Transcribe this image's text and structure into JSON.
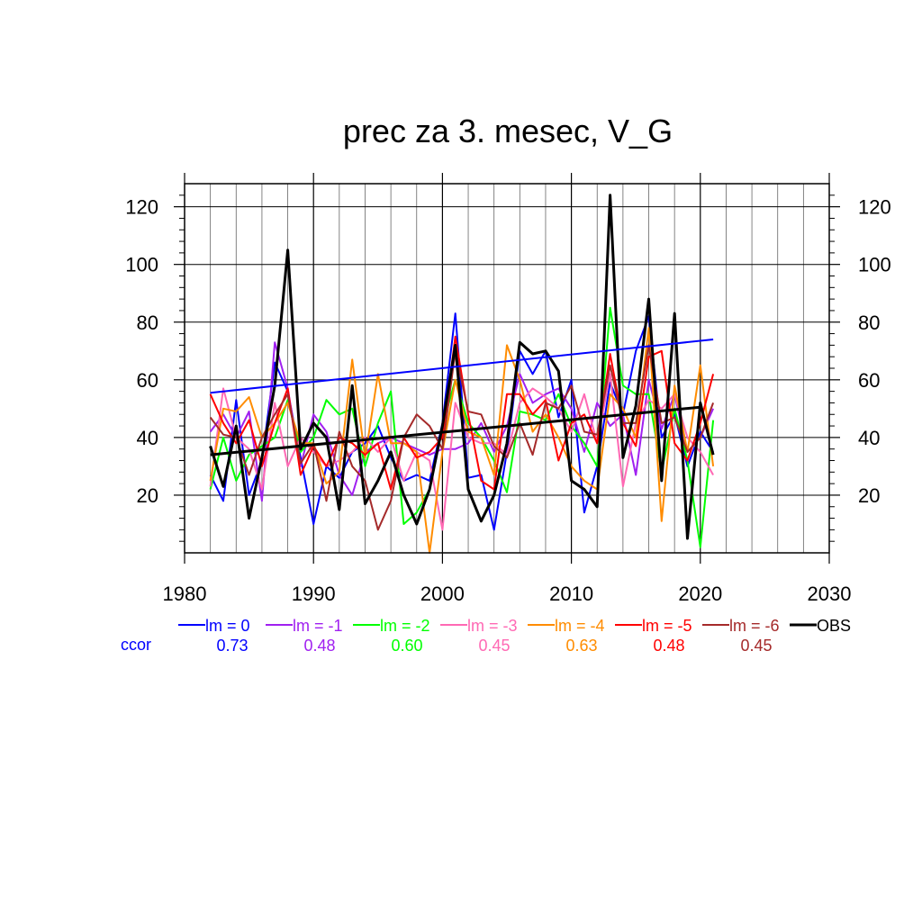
{
  "chart_data": {
    "type": "line",
    "title": "prec za 3. mesec, V_G",
    "xlim": [
      1980,
      2030
    ],
    "ylim": [
      0,
      128
    ],
    "x_ticks": [
      1980,
      1990,
      2000,
      2010,
      2020,
      2030
    ],
    "y_ticks": [
      20,
      40,
      60,
      80,
      100,
      120
    ],
    "grid": true,
    "legend_placement": "bottom",
    "years": [
      1982,
      1983,
      1984,
      1985,
      1986,
      1987,
      1988,
      1989,
      1990,
      1991,
      1992,
      1993,
      1994,
      1995,
      1996,
      1997,
      1998,
      1999,
      2000,
      2001,
      2002,
      2003,
      2004,
      2005,
      2006,
      2007,
      2008,
      2009,
      2010,
      2011,
      2012,
      2013,
      2014,
      2015,
      2016,
      2017,
      2018,
      2019,
      2020,
      2021
    ],
    "series": [
      {
        "name": "lm = 0",
        "color": "#0000ff",
        "ccor": "0.73",
        "values": [
          27,
          18,
          53,
          20,
          32,
          66,
          56,
          33,
          10,
          30,
          26,
          35,
          38,
          44,
          33,
          25,
          27,
          25,
          45,
          83,
          26,
          27,
          8,
          35,
          70,
          62,
          70,
          47,
          60,
          14,
          30,
          59,
          48,
          70,
          82,
          40,
          48,
          30,
          42,
          35
        ]
      },
      {
        "name": "lm = -1",
        "color": "#a020f0",
        "ccor": "0.48",
        "values": [
          42,
          48,
          40,
          49,
          18,
          73,
          57,
          30,
          48,
          42,
          27,
          20,
          35,
          38,
          40,
          38,
          36,
          34,
          36,
          36,
          38,
          45,
          35,
          44,
          62,
          52,
          55,
          57,
          50,
          35,
          52,
          44,
          48,
          27,
          60,
          43,
          55,
          35,
          40,
          50
        ]
      },
      {
        "name": "lm = -2",
        "color": "#00ff00",
        "ccor": "0.60",
        "values": [
          22,
          40,
          25,
          34,
          37,
          40,
          53,
          35,
          40,
          53,
          48,
          50,
          30,
          45,
          56,
          10,
          14,
          22,
          44,
          60,
          45,
          40,
          32,
          21,
          49,
          48,
          46,
          55,
          44,
          38,
          30,
          85,
          58,
          55,
          55,
          28,
          50,
          32,
          2,
          46
        ]
      },
      {
        "name": "lm = -3",
        "color": "#ff69b4",
        "ccor": "0.45",
        "values": [
          23,
          57,
          40,
          36,
          22,
          52,
          30,
          40,
          35,
          30,
          32,
          35,
          40,
          35,
          40,
          25,
          35,
          32,
          8,
          52,
          40,
          38,
          38,
          34,
          52,
          57,
          54,
          50,
          42,
          55,
          38,
          62,
          23,
          45,
          53,
          50,
          55,
          40,
          35,
          27
        ]
      },
      {
        "name": "lm = -4",
        "color": "#ff8c00",
        "ccor": "0.63",
        "values": [
          25,
          50,
          49,
          54,
          40,
          45,
          52,
          38,
          38,
          24,
          28,
          67,
          33,
          62,
          38,
          38,
          35,
          0,
          35,
          60,
          42,
          40,
          27,
          72,
          60,
          42,
          48,
          40,
          30,
          25,
          22,
          55,
          50,
          40,
          78,
          11,
          58,
          35,
          65,
          30
        ]
      },
      {
        "name": "lm = -5",
        "color": "#ff0000",
        "ccor": "0.48",
        "values": [
          55,
          45,
          38,
          46,
          30,
          45,
          57,
          27,
          37,
          30,
          40,
          38,
          34,
          38,
          22,
          40,
          33,
          35,
          40,
          75,
          48,
          25,
          22,
          55,
          55,
          48,
          53,
          32,
          45,
          48,
          38,
          69,
          45,
          37,
          68,
          70,
          38,
          32,
          45,
          62
        ]
      },
      {
        "name": "lm = -6",
        "color": "#a52a2a",
        "ccor": "0.45",
        "values": [
          47,
          41,
          40,
          27,
          40,
          48,
          55,
          31,
          38,
          18,
          42,
          30,
          25,
          8,
          18,
          40,
          48,
          44,
          36,
          70,
          49,
          48,
          37,
          33,
          45,
          34,
          52,
          50,
          58,
          42,
          41,
          65,
          45,
          45,
          72,
          45,
          47,
          35,
          40,
          52
        ]
      },
      {
        "name": "OBS",
        "color": "#000000",
        "ccor": "",
        "values": [
          37,
          23,
          44,
          12,
          33,
          58,
          105,
          36,
          45,
          40,
          15,
          58,
          17,
          25,
          35,
          20,
          10,
          22,
          44,
          72,
          22,
          11,
          20,
          38,
          73,
          69,
          70,
          63,
          25,
          22,
          16,
          124,
          33,
          51,
          88,
          25,
          83,
          5,
          52,
          34
        ]
      }
    ],
    "trends": [
      {
        "color": "#0000ff",
        "x": [
          1982,
          2021
        ],
        "y": [
          55.5,
          74
        ]
      },
      {
        "color": "#000000",
        "x": [
          1982,
          2020
        ],
        "y": [
          34,
          50.5
        ]
      }
    ],
    "ccor_label": "ccor",
    "ccor_color": "#0000ff"
  }
}
